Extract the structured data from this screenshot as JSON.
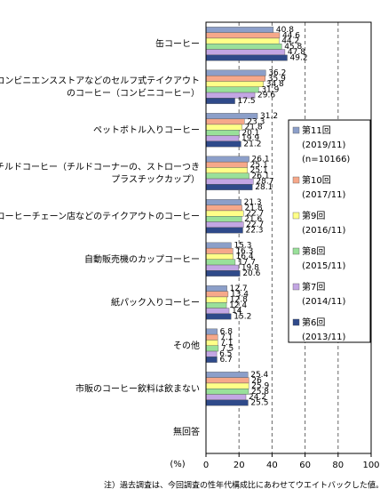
{
  "chart_data": {
    "type": "bar",
    "orientation": "horizontal",
    "categories": [
      [
        "缶コーヒー"
      ],
      [
        "コンビニエンスストアなどのセルフ式テイクアウト",
        "のコーヒー（コンビニコーヒー）"
      ],
      [
        "ペットボトル入りコーヒー"
      ],
      [
        "チルドコーヒー（チルドコーナーの、ストローつき",
        "プラスチックカップ）"
      ],
      [
        "コーヒーチェーン店などのテイクアウトのコーヒー"
      ],
      [
        "自動販売機のカップコーヒー"
      ],
      [
        "紙パック入りコーヒー"
      ],
      [
        "その他"
      ],
      [
        "市販のコーヒー飲料は飲まない"
      ],
      [
        "無回答"
      ]
    ],
    "series": [
      {
        "name": "第11回",
        "date": "(2019/11)",
        "n": "(n=10166)",
        "color": "#8c9fc9",
        "values": [
          40.8,
          36.2,
          31.2,
          26.1,
          21.3,
          15.3,
          12.7,
          6.8,
          25.4,
          null
        ]
      },
      {
        "name": "第10回",
        "date": "(2017/11)",
        "color": "#f6a88a",
        "values": [
          44.6,
          35.9,
          23.3,
          25.1,
          21.8,
          16.3,
          13.4,
          7.1,
          26.0,
          null
        ]
      },
      {
        "name": "第9回",
        "date": "(2016/11)",
        "color": "#ffff88",
        "values": [
          44.2,
          34.8,
          21.8,
          25.1,
          22.7,
          16.4,
          12.8,
          7.1,
          25.9,
          null
        ]
      },
      {
        "name": "第8回",
        "date": "(2015/11)",
        "color": "#99e09a",
        "values": [
          45.8,
          31.9,
          20.1,
          26.1,
          21.6,
          17.7,
          12.4,
          7.5,
          25.8,
          null
        ]
      },
      {
        "name": "第7回",
        "date": "(2014/11)",
        "color": "#c3a6e3",
        "values": [
          47.8,
          29.6,
          19.9,
          28.7,
          22.7,
          19.8,
          14.0,
          6.5,
          24.2,
          null
        ]
      },
      {
        "name": "第6回",
        "date": "(2013/11)",
        "color": "#2f4a8a",
        "values": [
          49.2,
          17.5,
          21.2,
          28.1,
          22.3,
          20.6,
          15.2,
          6.7,
          25.5,
          null
        ]
      }
    ],
    "xlim": [
      0,
      100
    ],
    "xticks": [
      0,
      20,
      40,
      60,
      80,
      100
    ],
    "grid": true,
    "unit_label": "(%)",
    "note": "注）過去調査は、今回調査の性年代構成比にあわせてウエイトバックした値。"
  }
}
